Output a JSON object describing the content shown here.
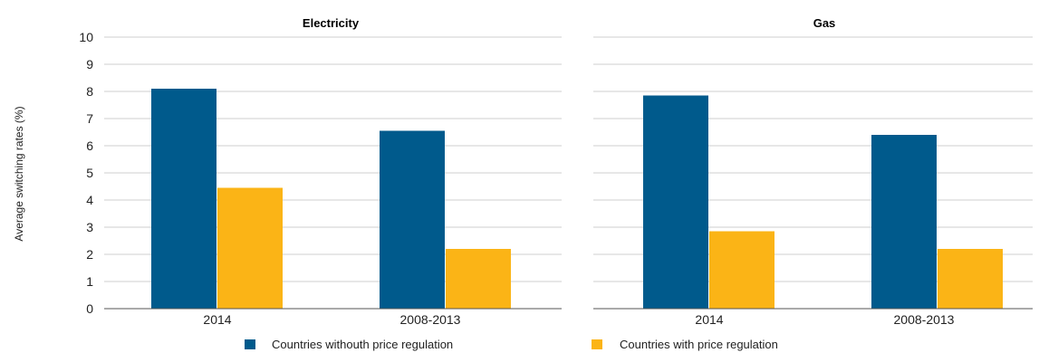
{
  "chart_data": {
    "type": "bar",
    "ylabel": "Average switching rates (%)",
    "ylim": [
      0,
      10
    ],
    "yticks": [
      0,
      1,
      2,
      3,
      4,
      5,
      6,
      7,
      8,
      9,
      10
    ],
    "grid": true,
    "legend_position": "bottom",
    "panels": [
      {
        "title": "Electricity",
        "categories": [
          "2014",
          "2008-2013"
        ],
        "series": [
          {
            "name": "Countries withouth price regulation",
            "values": [
              8.1,
              6.55
            ]
          },
          {
            "name": "Countries with price regulation",
            "values": [
              4.45,
              2.2
            ]
          }
        ]
      },
      {
        "title": "Gas",
        "categories": [
          "2014",
          "2008-2013"
        ],
        "series": [
          {
            "name": "Countries withouth price regulation",
            "values": [
              7.85,
              6.4
            ]
          },
          {
            "name": "Countries with price regulation",
            "values": [
              2.85,
              2.2
            ]
          }
        ]
      }
    ],
    "colors": [
      "#005a8c",
      "#fbb416"
    ]
  }
}
